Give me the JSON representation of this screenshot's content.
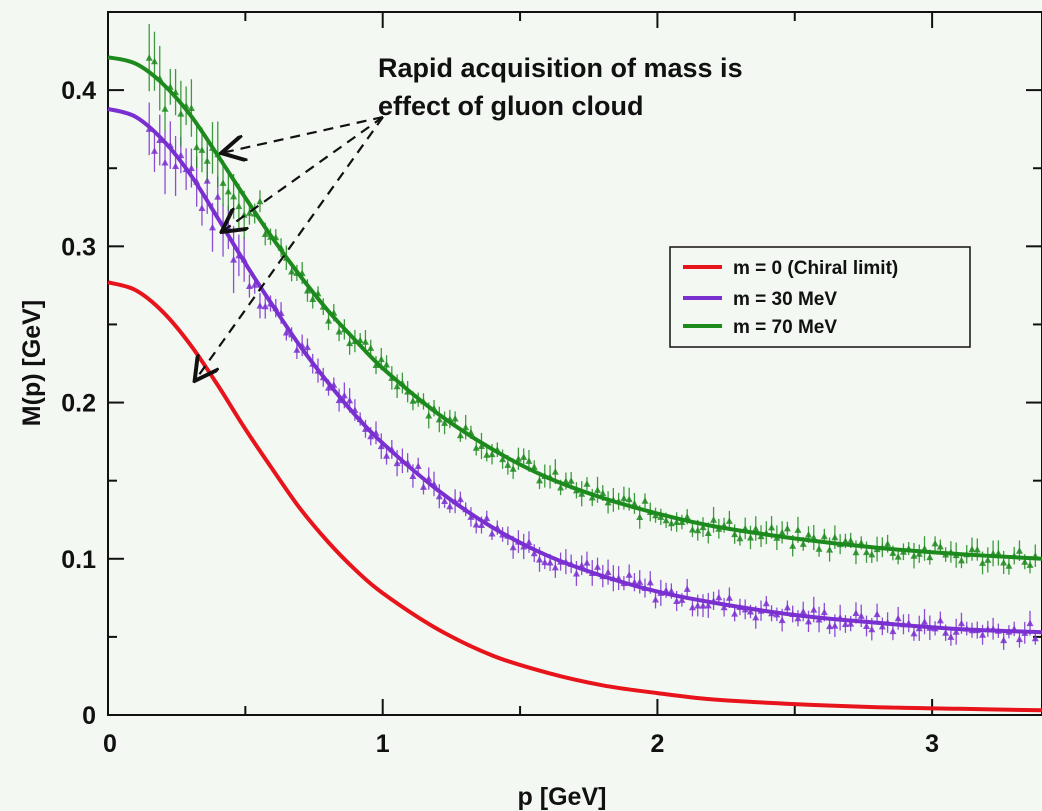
{
  "chart_data": {
    "type": "line",
    "title": "",
    "xlabel": "p [GeV]",
    "ylabel": "M(p) [GeV]",
    "xlim": [
      0,
      3.4
    ],
    "ylim": [
      0,
      0.45
    ],
    "grid": false,
    "legend_position": "right",
    "x_ticks": [
      {
        "value": 0,
        "label": "0"
      },
      {
        "value": 1,
        "label": "1"
      },
      {
        "value": 2,
        "label": "2"
      },
      {
        "value": 3,
        "label": "3"
      }
    ],
    "y_ticks": [
      {
        "value": 0,
        "label": "0"
      },
      {
        "value": 0.1,
        "label": "0.1"
      },
      {
        "value": 0.2,
        "label": "0.2"
      },
      {
        "value": 0.3,
        "label": "0.3"
      },
      {
        "value": 0.4,
        "label": "0.4"
      }
    ],
    "series": [
      {
        "name": "m = 0 (Chiral limit)",
        "color": "#e8141c",
        "x": [
          0,
          0.1,
          0.2,
          0.3,
          0.4,
          0.5,
          0.6,
          0.7,
          0.8,
          0.9,
          1.0,
          1.2,
          1.4,
          1.6,
          1.8,
          2.0,
          2.2,
          2.5,
          2.8,
          3.1,
          3.4
        ],
        "y": [
          0.277,
          0.272,
          0.258,
          0.237,
          0.211,
          0.183,
          0.157,
          0.132,
          0.111,
          0.093,
          0.078,
          0.055,
          0.038,
          0.027,
          0.019,
          0.014,
          0.01,
          0.007,
          0.005,
          0.004,
          0.003
        ]
      },
      {
        "name": "m = 30 MeV",
        "color": "#7a2fd0",
        "x": [
          0,
          0.1,
          0.2,
          0.3,
          0.4,
          0.5,
          0.6,
          0.7,
          0.8,
          0.9,
          1.0,
          1.2,
          1.4,
          1.6,
          1.8,
          2.0,
          2.2,
          2.5,
          2.8,
          3.1,
          3.4
        ],
        "y": [
          0.388,
          0.383,
          0.368,
          0.346,
          0.318,
          0.289,
          0.262,
          0.236,
          0.213,
          0.192,
          0.174,
          0.144,
          0.12,
          0.102,
          0.089,
          0.079,
          0.072,
          0.064,
          0.059,
          0.055,
          0.053
        ]
      },
      {
        "name": "m = 70 MeV",
        "color": "#1d8a1d",
        "x": [
          0,
          0.1,
          0.2,
          0.3,
          0.4,
          0.5,
          0.6,
          0.7,
          0.8,
          0.9,
          1.0,
          1.2,
          1.4,
          1.6,
          1.8,
          2.0,
          2.2,
          2.5,
          2.8,
          3.1,
          3.4
        ],
        "y": [
          0.421,
          0.417,
          0.404,
          0.384,
          0.358,
          0.331,
          0.305,
          0.281,
          0.259,
          0.24,
          0.222,
          0.193,
          0.17,
          0.152,
          0.139,
          0.129,
          0.121,
          0.113,
          0.107,
          0.103,
          0.1
        ]
      }
    ],
    "annotations": [
      {
        "text_lines": [
          "Rapid acquisition of mass is",
          "effect of gluon cloud"
        ],
        "arrow_targets": [
          [
            0.42,
            0.36
          ],
          [
            0.42,
            0.31
          ],
          [
            0.32,
            0.215
          ]
        ]
      }
    ]
  }
}
